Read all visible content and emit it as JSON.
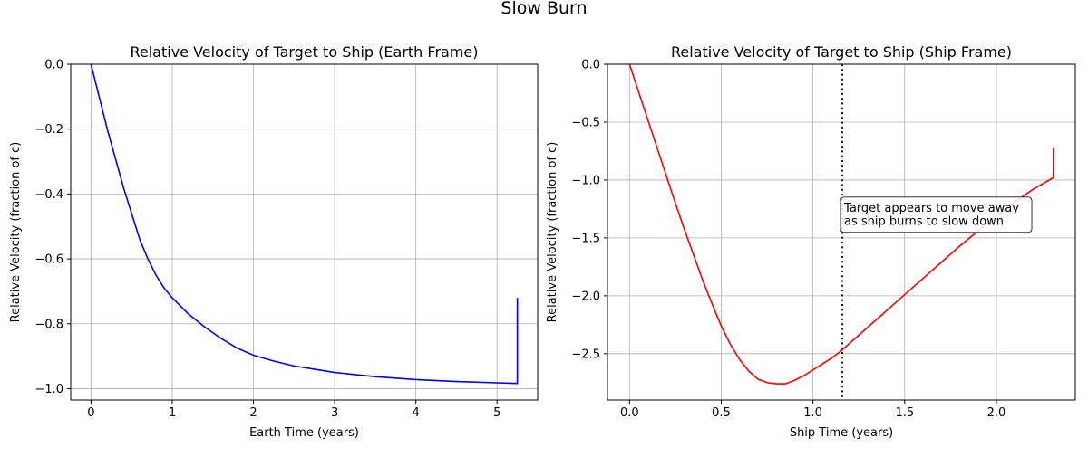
{
  "suptitle": "Slow Burn",
  "chart_data": [
    {
      "type": "line",
      "title": "Relative Velocity of Target to Ship (Earth Frame)",
      "xlabel": "Earth Time (years)",
      "ylabel": "Relative Velocity (fraction of c)",
      "xlim": [
        -0.25,
        5.5
      ],
      "ylim": [
        -1.035,
        0.0
      ],
      "xticks": [
        0,
        1,
        2,
        3,
        4,
        5
      ],
      "xtick_labels": [
        "0",
        "1",
        "2",
        "3",
        "4",
        "5"
      ],
      "yticks": [
        0.0,
        -0.2,
        -0.4,
        -0.6,
        -0.8,
        -1.0
      ],
      "ytick_labels": [
        "0.0",
        "−0.2",
        "−0.4",
        "−0.6",
        "−0.8",
        "−1.0"
      ],
      "grid": true,
      "series": [
        {
          "color": "#0000ff",
          "x": [
            0,
            0.1,
            0.2,
            0.3,
            0.4,
            0.5,
            0.6,
            0.7,
            0.8,
            0.9,
            1.0,
            1.2,
            1.4,
            1.6,
            1.8,
            2.0,
            2.25,
            2.5,
            2.75,
            3.0,
            3.5,
            4.0,
            4.5,
            5.0,
            5.25,
            5.25
          ],
          "y": [
            0,
            -0.1,
            -0.2,
            -0.29,
            -0.38,
            -0.46,
            -0.54,
            -0.6,
            -0.65,
            -0.69,
            -0.72,
            -0.77,
            -0.81,
            -0.845,
            -0.875,
            -0.897,
            -0.915,
            -0.93,
            -0.94,
            -0.95,
            -0.963,
            -0.972,
            -0.978,
            -0.982,
            -0.984,
            -0.72
          ]
        }
      ]
    },
    {
      "type": "line",
      "title": "Relative Velocity of Target to Ship (Ship Frame)",
      "xlabel": "Ship Time (years)",
      "ylabel": "Relative Velocity (fraction of c)",
      "xlim": [
        -0.12,
        2.43
      ],
      "ylim": [
        -2.9,
        0.0
      ],
      "xticks": [
        0.0,
        0.5,
        1.0,
        1.5,
        2.0
      ],
      "xtick_labels": [
        "0.0",
        "0.5",
        "1.0",
        "1.5",
        "2.0"
      ],
      "yticks": [
        0.0,
        -0.5,
        -1.0,
        -1.5,
        -2.0,
        -2.5
      ],
      "ytick_labels": [
        "0.0",
        "−0.5",
        "−1.0",
        "−1.5",
        "−2.0",
        "−2.5"
      ],
      "grid": true,
      "series": [
        {
          "color": "#ff0000",
          "x": [
            0,
            0.05,
            0.1,
            0.15,
            0.2,
            0.25,
            0.3,
            0.35,
            0.4,
            0.45,
            0.5,
            0.55,
            0.6,
            0.65,
            0.7,
            0.75,
            0.8,
            0.85,
            0.9,
            0.95,
            1.0,
            1.05,
            1.1,
            1.15,
            1.2,
            1.3,
            1.4,
            1.5,
            1.6,
            1.7,
            1.8,
            1.9,
            2.0,
            2.1,
            2.2,
            2.31,
            2.31
          ],
          "y": [
            0,
            -0.24,
            -0.48,
            -0.72,
            -0.96,
            -1.2,
            -1.43,
            -1.65,
            -1.87,
            -2.07,
            -2.26,
            -2.42,
            -2.55,
            -2.65,
            -2.72,
            -2.75,
            -2.76,
            -2.76,
            -2.73,
            -2.69,
            -2.64,
            -2.59,
            -2.54,
            -2.48,
            -2.41,
            -2.27,
            -2.13,
            -1.99,
            -1.85,
            -1.71,
            -1.57,
            -1.44,
            -1.31,
            -1.19,
            -1.08,
            -0.98,
            -0.72
          ]
        }
      ],
      "vline": {
        "x": 1.16,
        "color": "#000000",
        "style": "dotted"
      },
      "annotation": {
        "lines": [
          "Target appears to move away",
          "as ship burns to slow down"
        ],
        "x": 1.17,
        "y": -1.3
      }
    }
  ]
}
